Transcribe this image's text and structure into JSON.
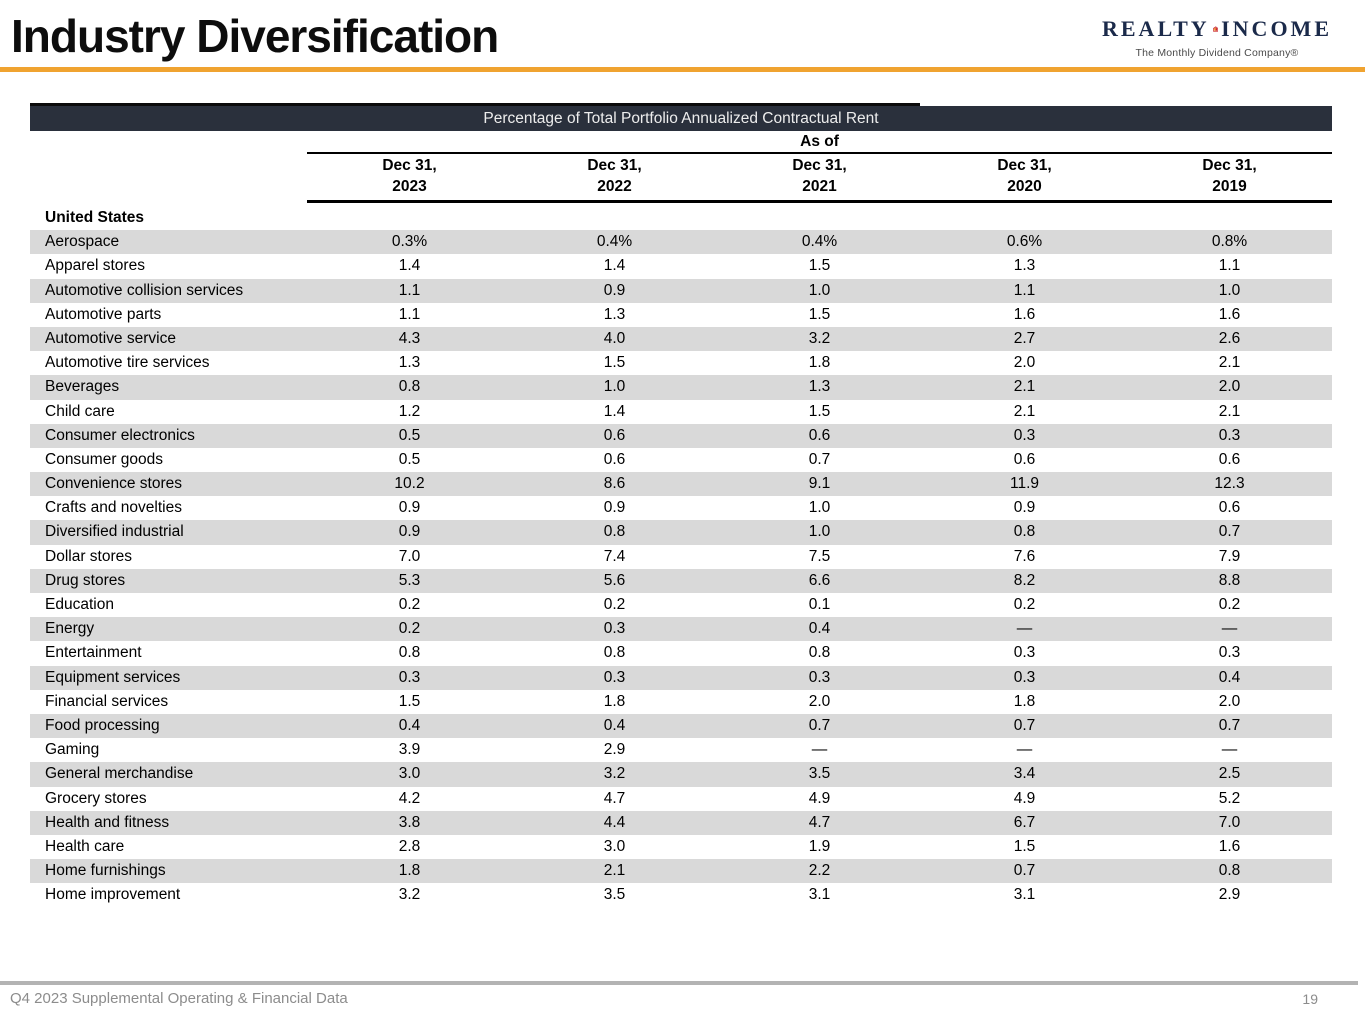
{
  "header": {
    "title": "Industry Diversification",
    "logo": {
      "brand_left": "REALTY",
      "brand_right": "INCOME",
      "tagline": "The Monthly Dividend Company®"
    }
  },
  "table": {
    "band_title": "Percentage of Total Portfolio Annualized Contractual Rent",
    "as_of_label": "As of",
    "columns": [
      {
        "line1": "Dec 31,",
        "line2": "2023"
      },
      {
        "line1": "Dec 31,",
        "line2": "2022"
      },
      {
        "line1": "Dec 31,",
        "line2": "2021"
      },
      {
        "line1": "Dec 31,",
        "line2": "2020"
      },
      {
        "line1": "Dec 31,",
        "line2": "2019"
      }
    ],
    "section_label": "United States",
    "rows": [
      {
        "industry": "Aerospace",
        "values": [
          "0.3%",
          "0.4%",
          "0.4%",
          "0.6%",
          "0.8%"
        ]
      },
      {
        "industry": "Apparel stores",
        "values": [
          "1.4",
          "1.4",
          "1.5",
          "1.3",
          "1.1"
        ]
      },
      {
        "industry": "Automotive collision services",
        "values": [
          "1.1",
          "0.9",
          "1.0",
          "1.1",
          "1.0"
        ]
      },
      {
        "industry": "Automotive parts",
        "values": [
          "1.1",
          "1.3",
          "1.5",
          "1.6",
          "1.6"
        ]
      },
      {
        "industry": "Automotive service",
        "values": [
          "4.3",
          "4.0",
          "3.2",
          "2.7",
          "2.6"
        ]
      },
      {
        "industry": "Automotive tire services",
        "values": [
          "1.3",
          "1.5",
          "1.8",
          "2.0",
          "2.1"
        ]
      },
      {
        "industry": "Beverages",
        "values": [
          "0.8",
          "1.0",
          "1.3",
          "2.1",
          "2.0"
        ]
      },
      {
        "industry": "Child care",
        "values": [
          "1.2",
          "1.4",
          "1.5",
          "2.1",
          "2.1"
        ]
      },
      {
        "industry": "Consumer electronics",
        "values": [
          "0.5",
          "0.6",
          "0.6",
          "0.3",
          "0.3"
        ]
      },
      {
        "industry": "Consumer goods",
        "values": [
          "0.5",
          "0.6",
          "0.7",
          "0.6",
          "0.6"
        ]
      },
      {
        "industry": "Convenience stores",
        "values": [
          "10.2",
          "8.6",
          "9.1",
          "11.9",
          "12.3"
        ]
      },
      {
        "industry": "Crafts and novelties",
        "values": [
          "0.9",
          "0.9",
          "1.0",
          "0.9",
          "0.6"
        ]
      },
      {
        "industry": "Diversified industrial",
        "values": [
          "0.9",
          "0.8",
          "1.0",
          "0.8",
          "0.7"
        ]
      },
      {
        "industry": "Dollar stores",
        "values": [
          "7.0",
          "7.4",
          "7.5",
          "7.6",
          "7.9"
        ]
      },
      {
        "industry": "Drug stores",
        "values": [
          "5.3",
          "5.6",
          "6.6",
          "8.2",
          "8.8"
        ]
      },
      {
        "industry": "Education",
        "values": [
          "0.2",
          "0.2",
          "0.1",
          "0.2",
          "0.2"
        ]
      },
      {
        "industry": "Energy",
        "values": [
          "0.2",
          "0.3",
          "0.4",
          "—",
          "—"
        ]
      },
      {
        "industry": "Entertainment",
        "values": [
          "0.8",
          "0.8",
          "0.8",
          "0.3",
          "0.3"
        ]
      },
      {
        "industry": "Equipment services",
        "values": [
          "0.3",
          "0.3",
          "0.3",
          "0.3",
          "0.4"
        ]
      },
      {
        "industry": "Financial services",
        "values": [
          "1.5",
          "1.8",
          "2.0",
          "1.8",
          "2.0"
        ]
      },
      {
        "industry": "Food processing",
        "values": [
          "0.4",
          "0.4",
          "0.7",
          "0.7",
          "0.7"
        ]
      },
      {
        "industry": "Gaming",
        "values": [
          "3.9",
          "2.9",
          "—",
          "—",
          "—"
        ]
      },
      {
        "industry": "General merchandise",
        "values": [
          "3.0",
          "3.2",
          "3.5",
          "3.4",
          "2.5"
        ]
      },
      {
        "industry": "Grocery stores",
        "values": [
          "4.2",
          "4.7",
          "4.9",
          "4.9",
          "5.2"
        ]
      },
      {
        "industry": "Health and fitness",
        "values": [
          "3.8",
          "4.4",
          "4.7",
          "6.7",
          "7.0"
        ]
      },
      {
        "industry": "Health care",
        "values": [
          "2.8",
          "3.0",
          "1.9",
          "1.5",
          "1.6"
        ]
      },
      {
        "industry": "Home furnishings",
        "values": [
          "1.8",
          "2.1",
          "2.2",
          "0.7",
          "0.8"
        ]
      },
      {
        "industry": "Home improvement",
        "values": [
          "3.2",
          "3.5",
          "3.1",
          "3.1",
          "2.9"
        ]
      }
    ]
  },
  "footer": {
    "left": "Q4 2023 Supplemental Operating & Financial Data",
    "page": "19"
  },
  "colors": {
    "accent_orange": "#F0A330",
    "band_bg": "#2A303C",
    "band_text": "#EDEDED",
    "row_shade": "#D9D9D9",
    "text": "#000000",
    "footer_text": "#8C8C8C",
    "footer_line": "#B3B3B3",
    "logo_navy": "#1B2A4A",
    "logo_red": "#C9252C",
    "logo_orange": "#F6A01A"
  }
}
